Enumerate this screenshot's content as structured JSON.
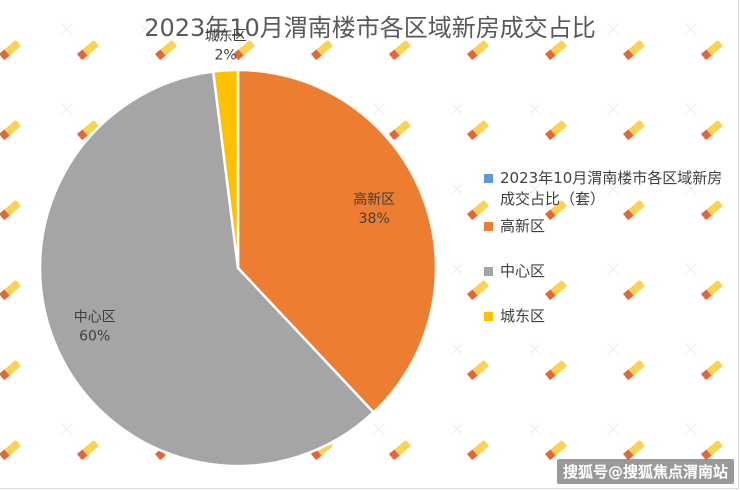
{
  "chart_data": {
    "type": "pie",
    "title": "2023年10月渭南楼市各区域新房成交占比",
    "series_name": "2023年10月渭南楼市各区域新房成交占比（套）",
    "categories": [
      "高新区",
      "中心区",
      "城东区"
    ],
    "values": [
      38,
      60,
      2
    ],
    "data_labels": [
      "38%",
      "60%",
      "2%"
    ],
    "colors": [
      "#ED7D31",
      "#A5A5A5",
      "#FFC000"
    ],
    "series_color": "#5B9BD5",
    "legend_position": "right",
    "start_angle_deg": 0,
    "direction": "clockwise"
  },
  "legend": {
    "items": [
      {
        "label": "2023年10月渭南楼市各区域新房成交占比（套）",
        "color": "#5B9BD5"
      },
      {
        "label": "高新区",
        "color": "#ED7D31"
      },
      {
        "label": "中心区",
        "color": "#A5A5A5"
      },
      {
        "label": "城东区",
        "color": "#FFC000"
      }
    ]
  },
  "watermark": {
    "text": "搜狐号@搜狐焦点渭南站"
  }
}
